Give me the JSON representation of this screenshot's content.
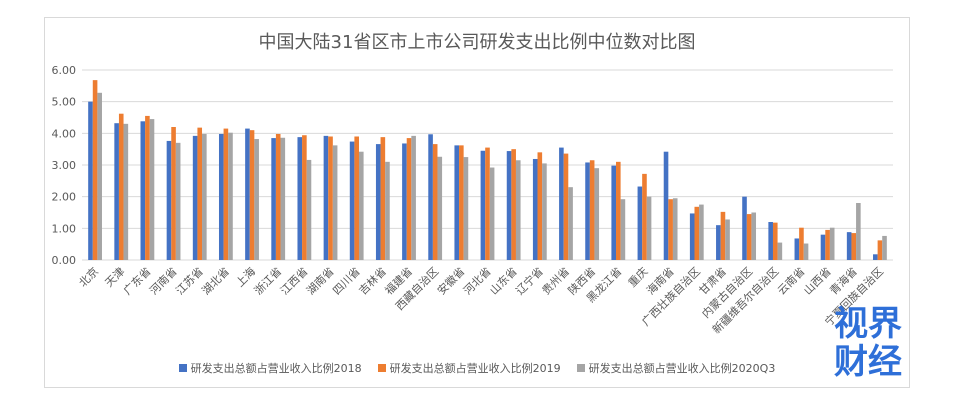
{
  "chart_data": {
    "type": "bar",
    "title": "中国大陆31省区市上市公司研发支出比例中位数对比图",
    "ylim": [
      0,
      6
    ],
    "yticks": [
      "0.00",
      "1.00",
      "2.00",
      "3.00",
      "4.00",
      "5.00",
      "6.00"
    ],
    "grid": "horizontal",
    "legend_position": "bottom",
    "categories": [
      "北京",
      "天津",
      "广东省",
      "河南省",
      "江苏省",
      "湖北省",
      "上海",
      "浙江省",
      "江西省",
      "湖南省",
      "四川省",
      "吉林省",
      "福建省",
      "西藏自治区",
      "安徽省",
      "河北省",
      "山东省",
      "辽宁省",
      "贵州省",
      "陕西省",
      "黑龙江省",
      "重庆",
      "海南省",
      "广西壮族自治区",
      "甘肃省",
      "内蒙古自治区",
      "新疆维吾尔自治区",
      "云南省",
      "山西省",
      "青海省",
      "宁夏回族自治区"
    ],
    "series": [
      {
        "name": "研发支出总额占营业收入比例2018",
        "color": "#4472c4",
        "values": [
          5.0,
          4.32,
          4.38,
          3.76,
          3.92,
          3.98,
          4.15,
          3.85,
          3.88,
          3.92,
          3.74,
          3.66,
          3.68,
          3.97,
          3.62,
          3.45,
          3.44,
          3.19,
          3.55,
          3.08,
          2.98,
          2.32,
          3.42,
          1.47,
          1.1,
          2.0,
          1.2,
          0.68,
          0.8,
          0.88,
          0.18
        ]
      },
      {
        "name": "研发支出总额占营业收入比例2019",
        "color": "#ed7d31",
        "values": [
          5.68,
          4.62,
          4.55,
          4.2,
          4.18,
          4.15,
          4.1,
          3.98,
          3.94,
          3.9,
          3.9,
          3.88,
          3.85,
          3.66,
          3.62,
          3.55,
          3.5,
          3.4,
          3.36,
          3.15,
          3.1,
          2.72,
          1.92,
          1.68,
          1.52,
          1.45,
          1.18,
          1.02,
          0.95,
          0.85,
          0.62
        ]
      },
      {
        "name": "研发支出总额占营业收入比例2020Q3",
        "color": "#a5a5a5",
        "values": [
          5.28,
          4.3,
          4.45,
          3.7,
          3.98,
          4.02,
          3.82,
          3.86,
          3.16,
          3.62,
          3.42,
          3.1,
          3.92,
          3.26,
          3.25,
          2.92,
          3.15,
          3.05,
          2.3,
          2.9,
          1.92,
          2.0,
          1.95,
          1.75,
          1.28,
          1.5,
          0.55,
          0.52,
          1.02,
          1.8,
          0.76
        ]
      }
    ]
  },
  "watermark": {
    "line1": "视界",
    "line2": "财经"
  }
}
